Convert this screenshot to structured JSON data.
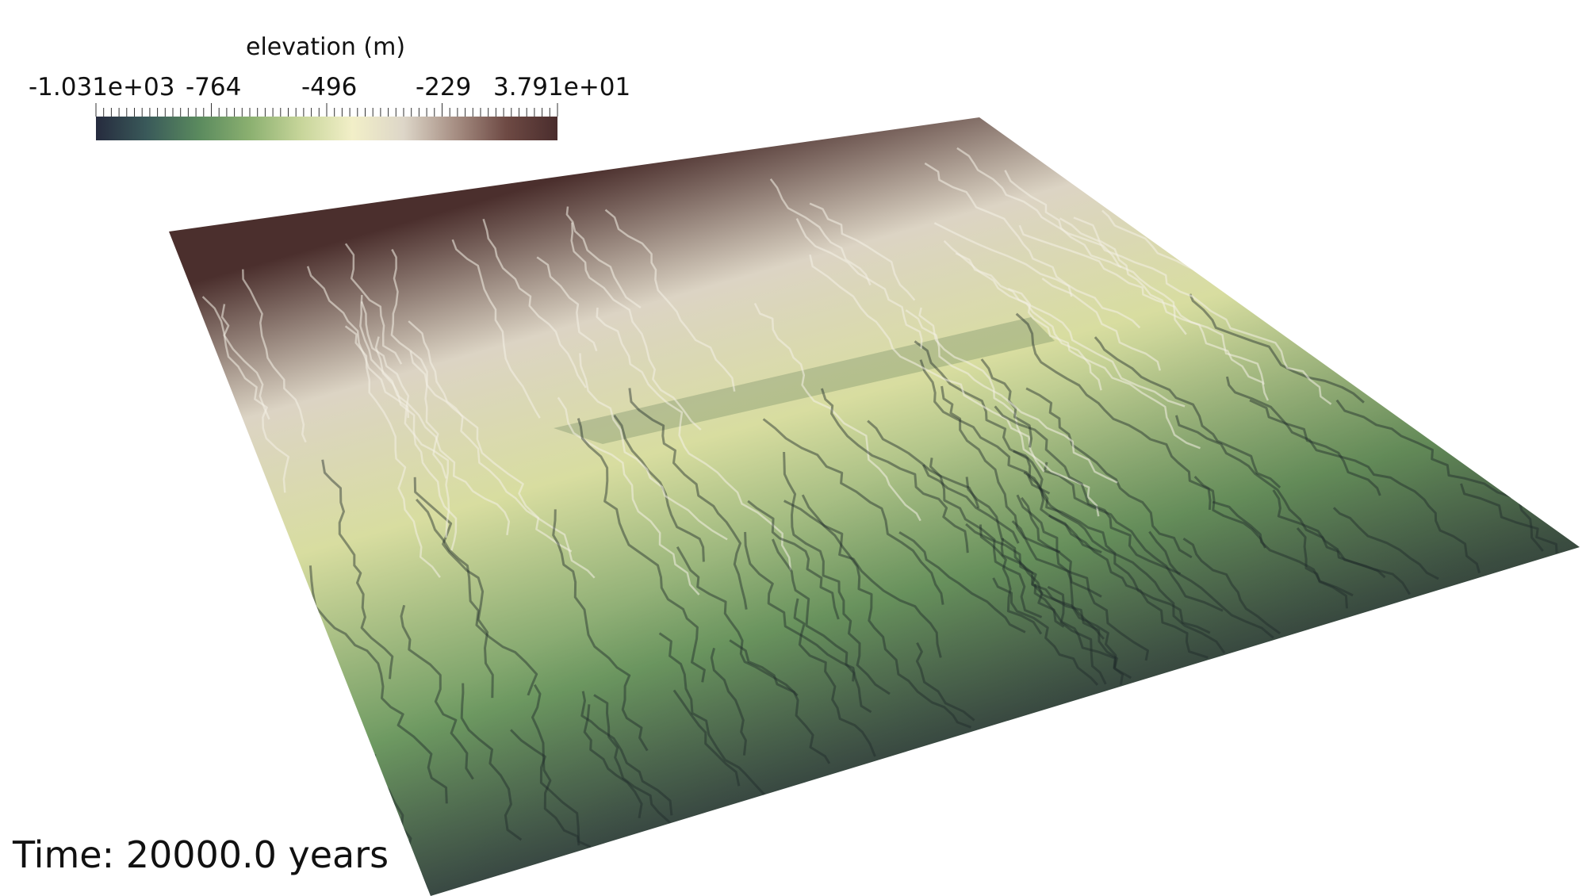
{
  "scalar_bar": {
    "title": "elevation (m)",
    "min_label": "-1.031e+03",
    "tick_labels": [
      "-764",
      "-496",
      "-229"
    ],
    "max_label": "3.791e+01",
    "range": [
      -1031,
      37.91
    ],
    "colormap": [
      "#262b3e",
      "#3a5a5a",
      "#5a8a5e",
      "#8bb070",
      "#c7d59a",
      "#f2efc8",
      "#ddd6c8",
      "#a78f84",
      "#6e4a44",
      "#4a2d2d"
    ]
  },
  "time_label": "Time: 20000.0 years",
  "surface": {
    "field": "elevation",
    "colors": {
      "top": "#4b2f2d",
      "upper": "#dcd4c4",
      "middle": "#d8dda0",
      "lower": "#6e9a62",
      "bottom": "#2a2f3f"
    }
  }
}
